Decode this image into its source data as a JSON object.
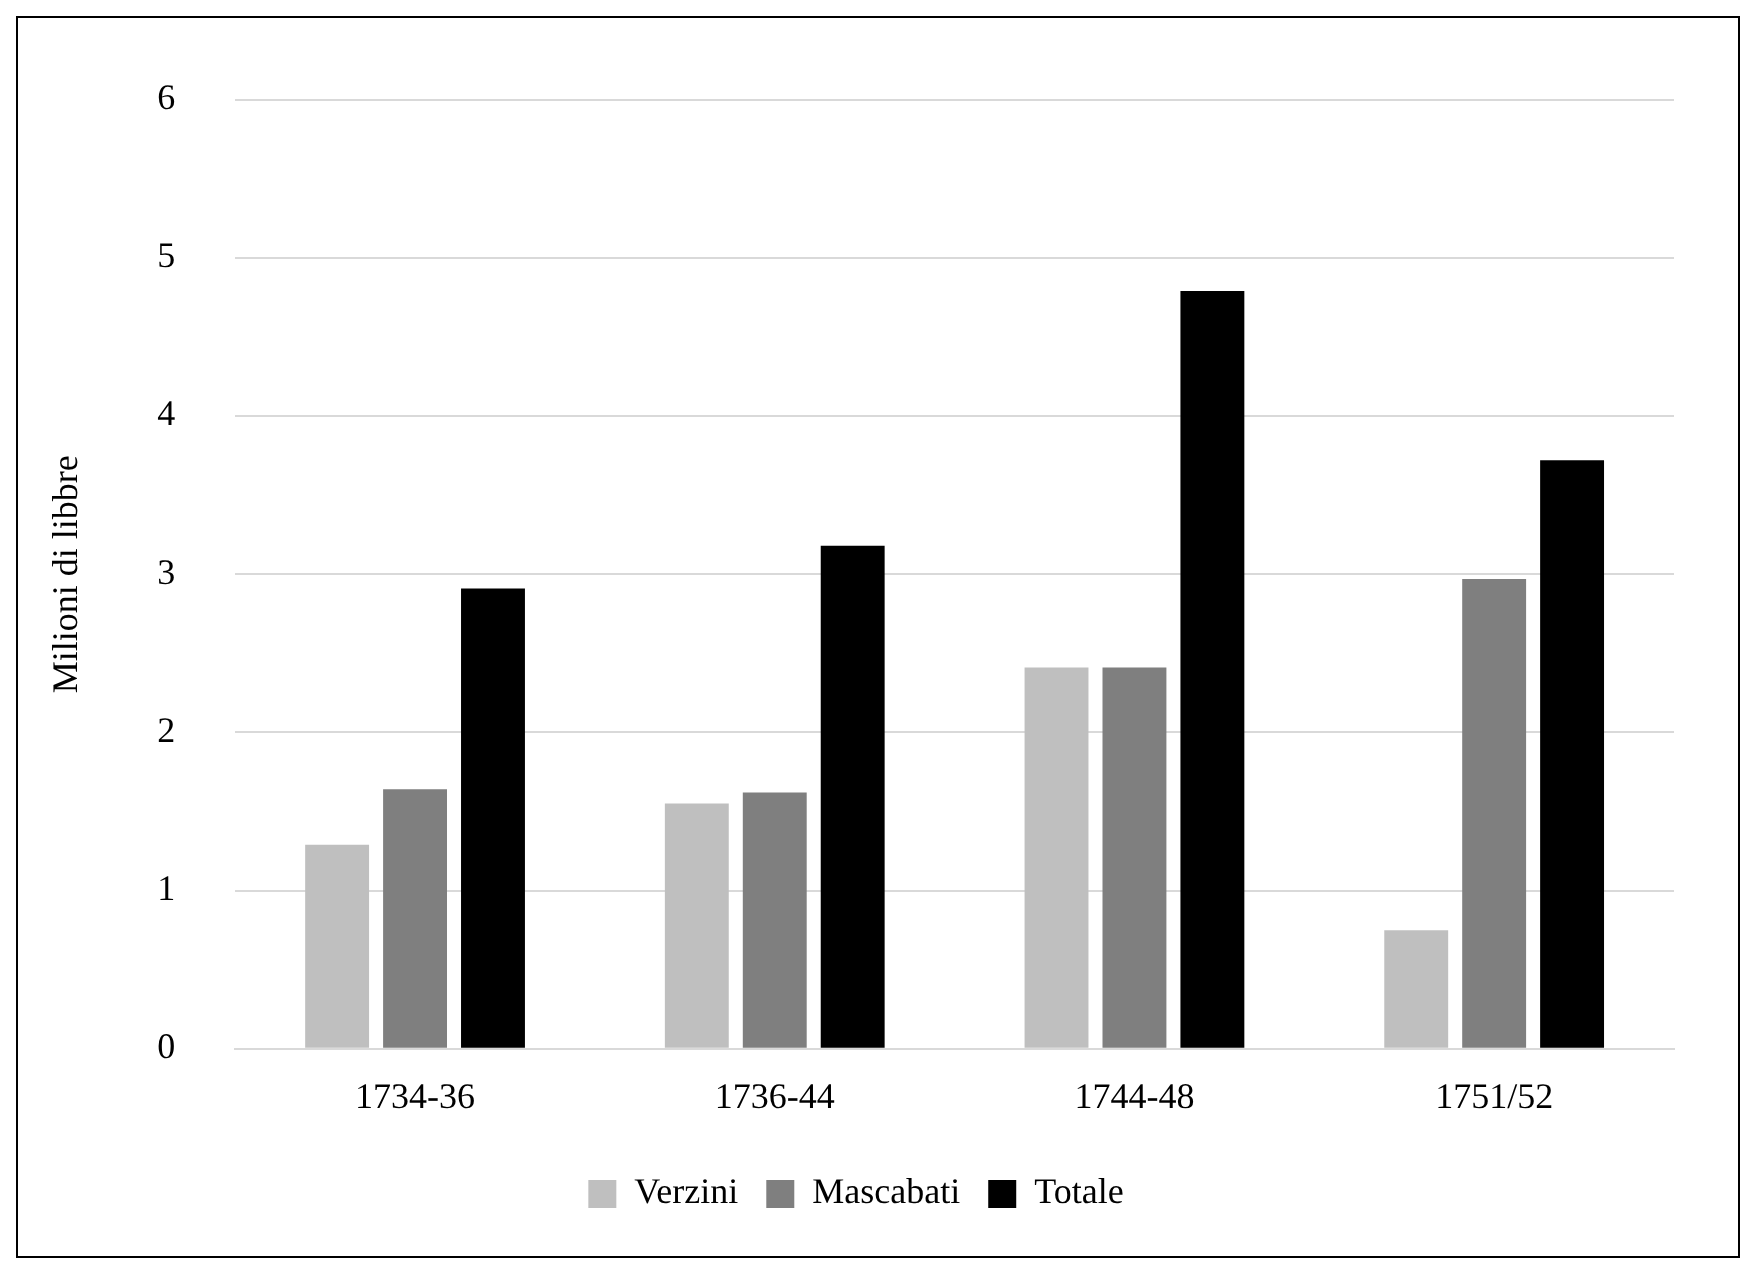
{
  "chart_data": {
    "type": "bar",
    "ylabel": "Milioni di libbre",
    "categories": [
      "1734-36",
      "1736-44",
      "1744-48",
      "1751/52"
    ],
    "series": [
      {
        "name": "Verzini",
        "color": "#bfbfbf",
        "values": [
          1.29,
          1.55,
          2.41,
          0.75
        ]
      },
      {
        "name": "Mascabati",
        "color": "#7f7f7f",
        "values": [
          1.64,
          1.62,
          2.41,
          2.97
        ]
      },
      {
        "name": "Totale",
        "color": "#000000",
        "values": [
          2.91,
          3.18,
          4.79,
          3.72
        ]
      }
    ],
    "ylim": [
      0,
      6
    ],
    "yticks": [
      0,
      1,
      2,
      3,
      4,
      5,
      6
    ],
    "grid": "y",
    "legend": "bottom"
  }
}
